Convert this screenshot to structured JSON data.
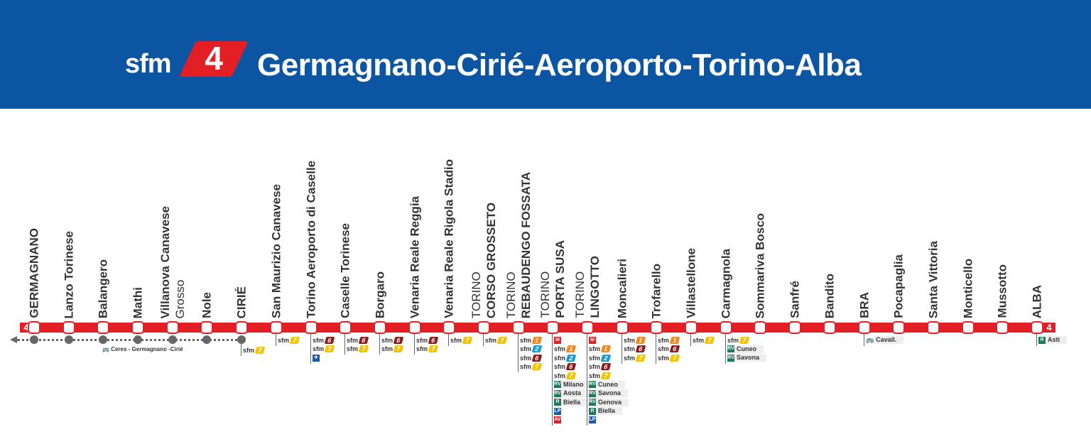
{
  "header": {
    "brand": "sfm",
    "line_number": "4",
    "title": "Germagnano-Cirié-Aeroporto-Torino-Alba",
    "background_color": "#0c55a3",
    "line_color": "#e31e24"
  },
  "line_end_badge": "4",
  "branch_note": {
    "icon": "bus-icon",
    "text": "Ceres - Germagnano -Cirié"
  },
  "colors": {
    "sfm1": "#f08a24",
    "sfm2": "#1a9ad6",
    "sfm6": "#8b1c1c",
    "sfm7": "#f5c400",
    "RV": "#1e7a5e",
    "R": "#1e7a5e",
    "LP": "#1a5aa8",
    "AV": "#e31e24",
    "M": "#e31e24"
  },
  "stations": [
    {
      "name": [
        "GERMAGNANO"
      ],
      "connections": []
    },
    {
      "name": [
        "Lanzo Torinese"
      ],
      "connections": []
    },
    {
      "name": [
        "Balangero"
      ],
      "connections": []
    },
    {
      "name": [
        "Mathi"
      ],
      "connections": []
    },
    {
      "name": [
        "Villanova Canavese",
        "Grosso"
      ],
      "connections": []
    },
    {
      "name": [
        "Nole"
      ],
      "connections": []
    },
    {
      "name": [
        "CIRIÉ"
      ],
      "connections": [
        {
          "type": "sfm",
          "num": "7"
        }
      ]
    },
    {
      "name": [
        "San Maurizio Canavese"
      ],
      "connections": [
        {
          "type": "sfm",
          "num": "7"
        }
      ]
    },
    {
      "name": [
        "Torino Aeroporto di Caselle"
      ],
      "connections": [
        {
          "type": "sfm",
          "num": "6"
        },
        {
          "type": "sfm",
          "num": "7"
        },
        {
          "type": "airport"
        }
      ]
    },
    {
      "name": [
        "Caselle Torinese"
      ],
      "connections": [
        {
          "type": "sfm",
          "num": "6"
        },
        {
          "type": "sfm",
          "num": "7"
        }
      ]
    },
    {
      "name": [
        "Borgaro"
      ],
      "connections": [
        {
          "type": "sfm",
          "num": "6"
        },
        {
          "type": "sfm",
          "num": "7"
        }
      ]
    },
    {
      "name": [
        "Venaria Reale Reggia"
      ],
      "connections": [
        {
          "type": "sfm",
          "num": "6"
        },
        {
          "type": "sfm",
          "num": "7"
        }
      ]
    },
    {
      "name": [
        "Venaria Reale Rigola Stadio"
      ],
      "connections": [
        {
          "type": "sfm",
          "num": "7"
        }
      ]
    },
    {
      "name": [
        "TORINO",
        "CORSO GROSSETO"
      ],
      "connections": [
        {
          "type": "sfm",
          "num": "7"
        }
      ]
    },
    {
      "name": [
        "TORINO",
        "REBAUDENGO FOSSATA"
      ],
      "connections": [
        {
          "type": "sfm",
          "num": "1"
        },
        {
          "type": "sfm",
          "num": "2"
        },
        {
          "type": "sfm",
          "num": "6"
        },
        {
          "type": "sfm",
          "num": "7"
        }
      ]
    },
    {
      "name": [
        "TORINO",
        "PORTA SUSA"
      ],
      "connections": [
        {
          "type": "M"
        },
        {
          "type": "sfm",
          "num": "1"
        },
        {
          "type": "sfm",
          "num": "2"
        },
        {
          "type": "sfm",
          "num": "6"
        },
        {
          "type": "sfm",
          "num": "7"
        },
        {
          "type": "RV",
          "dest": "Milano"
        },
        {
          "type": "RV",
          "dest": "Aosta"
        },
        {
          "type": "R",
          "dest": "Biella"
        },
        {
          "type": "LP"
        },
        {
          "type": "AV"
        }
      ]
    },
    {
      "name": [
        "TORINO",
        "LINGOTTO"
      ],
      "connections": [
        {
          "type": "M"
        },
        {
          "type": "sfm",
          "num": "1"
        },
        {
          "type": "sfm",
          "num": "2"
        },
        {
          "type": "sfm",
          "num": "6"
        },
        {
          "type": "sfm",
          "num": "7"
        },
        {
          "type": "RV",
          "dest": "Cuneo"
        },
        {
          "type": "RV",
          "dest": "Savona"
        },
        {
          "type": "RV",
          "dest": "Genova"
        },
        {
          "type": "R",
          "dest": "Biella"
        },
        {
          "type": "LP"
        }
      ]
    },
    {
      "name": [
        "Moncalieri"
      ],
      "connections": [
        {
          "type": "sfm",
          "num": "1"
        },
        {
          "type": "sfm",
          "num": "6"
        },
        {
          "type": "sfm",
          "num": "7"
        }
      ]
    },
    {
      "name": [
        "Trofarello"
      ],
      "connections": [
        {
          "type": "sfm",
          "num": "1"
        },
        {
          "type": "sfm",
          "num": "6"
        },
        {
          "type": "sfm",
          "num": "7"
        }
      ]
    },
    {
      "name": [
        "Villastellone"
      ],
      "connections": [
        {
          "type": "sfm",
          "num": "7"
        }
      ]
    },
    {
      "name": [
        "Carmagnola"
      ],
      "connections": [
        {
          "type": "sfm",
          "num": "7"
        },
        {
          "type": "RV",
          "dest": "Cuneo"
        },
        {
          "type": "RV",
          "dest": "Savona"
        }
      ]
    },
    {
      "name": [
        "Sommariva Bosco"
      ],
      "connections": []
    },
    {
      "name": [
        "Sanfré"
      ],
      "connections": []
    },
    {
      "name": [
        "Bandito"
      ],
      "connections": []
    },
    {
      "name": [
        "BRA"
      ],
      "connections": [
        {
          "type": "bus",
          "dest": "Cavall."
        }
      ]
    },
    {
      "name": [
        "Pocapaglia"
      ],
      "connections": []
    },
    {
      "name": [
        "Santa Vittoria"
      ],
      "connections": []
    },
    {
      "name": [
        "Monticello"
      ],
      "connections": []
    },
    {
      "name": [
        "Mussotto"
      ],
      "connections": []
    },
    {
      "name": [
        "ALBA"
      ],
      "connections": [
        {
          "type": "R",
          "dest": "Asti"
        }
      ]
    }
  ]
}
